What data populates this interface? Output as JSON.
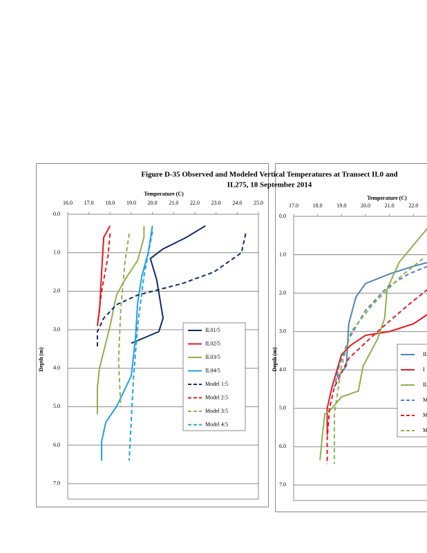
{
  "figure_title": [
    "Figure D-35 Observed and Modeled Vertical Temperatures at Transect IL0 and",
    "IL275, 18 September 2014"
  ],
  "chart_data": [
    {
      "type": "line",
      "x_label": "Temperature (C)",
      "y_label": "Depth (m)",
      "xlim": [
        16,
        25
      ],
      "ylim": [
        0,
        7.4
      ],
      "y_inverted": true,
      "grid": true,
      "xticks": [
        {
          "value": 16,
          "label": "16.0"
        },
        {
          "value": 17,
          "label": "17.0"
        },
        {
          "value": 18,
          "label": "18.0"
        },
        {
          "value": 19,
          "label": "19.0"
        },
        {
          "value": 20,
          "label": "20.0"
        },
        {
          "value": 21,
          "label": "21.0"
        },
        {
          "value": 22,
          "label": "22.0"
        },
        {
          "value": 23,
          "label": "23.0"
        },
        {
          "value": 24,
          "label": "24.0"
        },
        {
          "value": 25,
          "label": "25.0"
        }
      ],
      "yticks": [
        {
          "value": 0,
          "label": "0.0"
        },
        {
          "value": 1,
          "label": "1.0"
        },
        {
          "value": 2,
          "label": "2.0"
        },
        {
          "value": 3,
          "label": "3.0"
        },
        {
          "value": 4,
          "label": "4.0"
        },
        {
          "value": 5,
          "label": "5.0"
        },
        {
          "value": 6,
          "label": "6.0"
        },
        {
          "value": 7,
          "label": "7.0"
        }
      ],
      "series": [
        {
          "name": "IL01/5",
          "color": "#0d2a63",
          "dashed": false,
          "x": [
            22.5,
            21.6,
            20.5,
            19.9,
            20.2,
            20.5,
            20.3,
            19.0
          ],
          "values": [
            0.3,
            0.6,
            0.9,
            1.15,
            1.7,
            2.7,
            3.05,
            3.35
          ]
        },
        {
          "name": "IL02/5",
          "color": "#e8161b",
          "dashed": false,
          "x": [
            18.0,
            17.7,
            17.6,
            17.5,
            17.4
          ],
          "values": [
            0.3,
            0.6,
            1.5,
            2.5,
            2.9
          ]
        },
        {
          "name": "IL03/5",
          "color": "#8db04a",
          "dashed": false,
          "x": [
            19.6,
            19.6,
            19.3,
            18.7,
            18.3,
            18.0,
            17.5,
            17.4,
            17.4
          ],
          "values": [
            0.3,
            0.6,
            1.2,
            1.7,
            2.1,
            2.9,
            4.0,
            4.5,
            5.2
          ]
        },
        {
          "name": "IL04/5",
          "color": "#1ea0e0",
          "dashed": false,
          "x": [
            20.0,
            19.8,
            19.5,
            19.3,
            19.2,
            19.0,
            18.3,
            17.8,
            17.6,
            17.6
          ],
          "values": [
            0.3,
            1.0,
            1.6,
            2.3,
            3.2,
            4.2,
            5.0,
            5.4,
            5.9,
            6.4
          ]
        },
        {
          "name": "Model 1:5",
          "color": "#0d2a63",
          "dashed": true,
          "x": [
            24.4,
            24.2,
            22.9,
            21.4,
            19.3,
            18.3,
            17.7,
            17.4,
            17.4
          ],
          "values": [
            0.5,
            1.0,
            1.5,
            1.8,
            2.1,
            2.35,
            2.7,
            3.05,
            3.45
          ]
        },
        {
          "name": "Model 2:5",
          "color": "#e8161b",
          "dashed": true,
          "x": [
            18.0,
            17.9,
            17.6,
            17.4
          ],
          "values": [
            0.5,
            1.1,
            2.0,
            2.9
          ]
        },
        {
          "name": "Model 3:5",
          "color": "#8db04a",
          "dashed": true,
          "x": [
            18.9,
            18.7,
            18.5,
            18.4,
            18.5
          ],
          "values": [
            0.5,
            1.25,
            2.5,
            3.8,
            5.0
          ]
        },
        {
          "name": "Model 4:5",
          "color": "#1ea0e0",
          "dashed": true,
          "x": [
            20.0,
            19.6,
            19.3,
            19.1,
            18.9
          ],
          "values": [
            0.45,
            1.6,
            2.9,
            4.3,
            6.4
          ]
        }
      ]
    },
    {
      "type": "line",
      "x_label": "Temperature (C)",
      "y_label": "Depth (m)",
      "xlim": [
        17,
        26
      ],
      "ylim": [
        0,
        7.4
      ],
      "y_inverted": true,
      "grid": true,
      "xticks": [
        {
          "value": 17,
          "label": "17.0"
        },
        {
          "value": 18,
          "label": "18.0"
        },
        {
          "value": 19,
          "label": "19.0"
        },
        {
          "value": 20,
          "label": "20.0"
        },
        {
          "value": 21,
          "label": "21.0"
        },
        {
          "value": 22,
          "label": "22.0"
        }
      ],
      "yticks": [
        {
          "value": 0,
          "label": "0.0"
        },
        {
          "value": 1,
          "label": "1.0"
        },
        {
          "value": 2,
          "label": "2.0"
        },
        {
          "value": 3,
          "label": "3.0"
        },
        {
          "value": 4,
          "label": "4.0"
        },
        {
          "value": 5,
          "label": "5.0"
        },
        {
          "value": 6,
          "label": "6.0"
        },
        {
          "value": 7,
          "label": "7.0"
        }
      ],
      "series": [
        {
          "name": "IL",
          "color": "#4f81bd",
          "dashed": false,
          "x": [
            22.6,
            22.0,
            21.0,
            20.0,
            19.6,
            19.3,
            19.2,
            18.8
          ],
          "values": [
            1.2,
            1.3,
            1.5,
            1.75,
            2.1,
            2.8,
            3.9,
            4.2
          ]
        },
        {
          "name": "I",
          "color": "#e8161b",
          "dashed": false,
          "x": [
            22.6,
            22.0,
            21.0,
            20.0,
            19.4,
            19.0,
            18.6,
            18.4,
            18.4
          ],
          "values": [
            2.55,
            2.8,
            3.0,
            3.1,
            3.35,
            3.6,
            4.45,
            5.0,
            5.7
          ]
        },
        {
          "name": "IL",
          "color": "#8db04a",
          "dashed": false,
          "x": [
            22.6,
            22.0,
            21.4,
            20.9,
            20.8,
            20.5,
            19.9,
            19.7,
            19.0,
            18.6,
            18.3,
            18.2,
            18.1
          ],
          "values": [
            0.3,
            0.75,
            1.2,
            1.9,
            2.65,
            3.2,
            3.9,
            4.55,
            4.7,
            5.0,
            5.15,
            5.7,
            6.35
          ]
        },
        {
          "name": "M",
          "color": "#4f81bd",
          "dashed": true,
          "x": [
            22.6,
            21.8,
            20.9,
            20.0,
            19.3,
            18.9,
            18.7
          ],
          "values": [
            1.3,
            1.5,
            1.85,
            2.45,
            3.2,
            3.9,
            4.45
          ]
        },
        {
          "name": "M",
          "color": "#e8161b",
          "dashed": true,
          "x": [
            22.6,
            21.8,
            20.5,
            19.3,
            18.7,
            18.5,
            18.4,
            18.4
          ],
          "values": [
            1.9,
            2.3,
            3.0,
            3.7,
            4.45,
            5.0,
            5.8,
            6.45
          ]
        },
        {
          "name": "M",
          "color": "#8db04a",
          "dashed": true,
          "x": [
            22.4,
            21.5,
            20.3,
            19.4,
            19.0,
            18.7,
            18.7
          ],
          "values": [
            1.1,
            1.55,
            2.3,
            3.0,
            3.9,
            5.15,
            6.45
          ]
        }
      ]
    }
  ]
}
